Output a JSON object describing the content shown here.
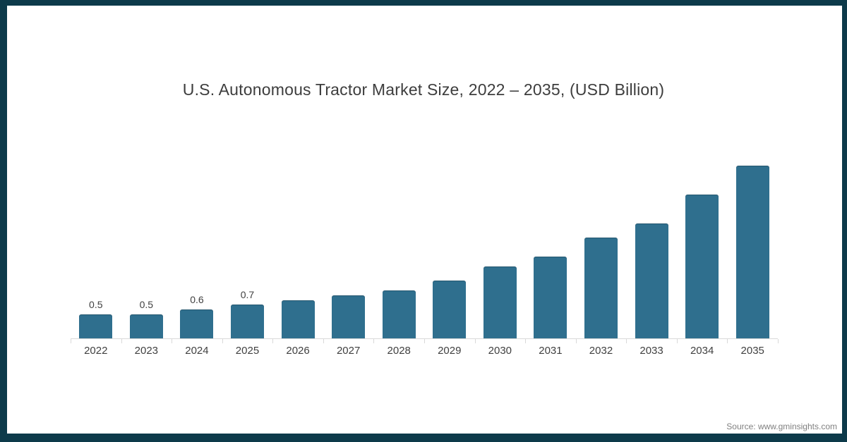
{
  "frame": {
    "border_color": "#0d3a4a",
    "background": "#ffffff"
  },
  "header": {
    "title": "U.S. Autonomous Tractor Market Size, 2022 – 2035, (USD Billion)"
  },
  "footer": {
    "source": "Source: www.gminsights.com"
  },
  "chart_data": {
    "type": "bar",
    "title": "U.S. Autonomous Tractor Market Size, 2022 – 2035, (USD Billion)",
    "unit": "USD Billion",
    "categories": [
      "2022",
      "2023",
      "2024",
      "2025",
      "2026",
      "2027",
      "2028",
      "2029",
      "2030",
      "2031",
      "2032",
      "2033",
      "2034",
      "2035"
    ],
    "values": [
      0.5,
      0.5,
      0.6,
      0.7,
      0.8,
      0.9,
      1.0,
      1.2,
      1.5,
      1.7,
      2.1,
      2.4,
      3.0,
      3.6
    ],
    "data_labels": [
      "0.5",
      "0.5",
      "0.6",
      "0.7",
      null,
      null,
      null,
      null,
      null,
      null,
      null,
      null,
      null,
      null
    ],
    "bar_color": "#2f6f8e",
    "axis_color": "#d9d9d9",
    "text_color": "#404040",
    "ylim": [
      0,
      3.9
    ],
    "grid": false,
    "legend": "none",
    "y_axis_shown": false
  }
}
